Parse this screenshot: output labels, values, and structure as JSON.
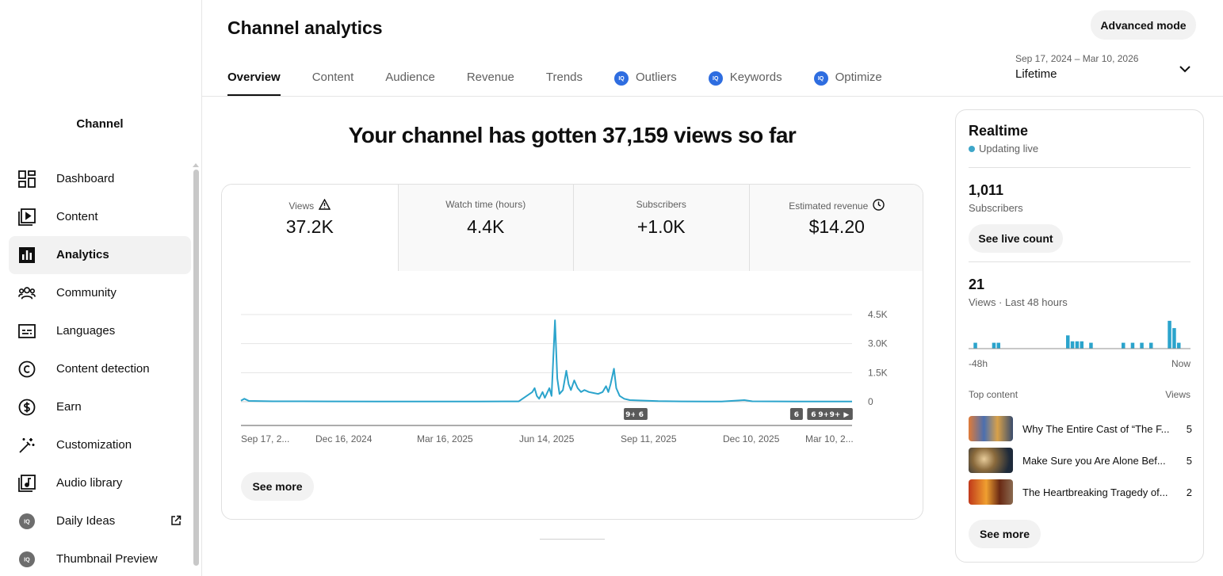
{
  "sidebar": {
    "channel_label": "Channel",
    "items": [
      {
        "label": "Dashboard",
        "icon": "dashboard-icon"
      },
      {
        "label": "Content",
        "icon": "content-icon"
      },
      {
        "label": "Analytics",
        "icon": "analytics-icon",
        "active": true
      },
      {
        "label": "Community",
        "icon": "community-icon"
      },
      {
        "label": "Languages",
        "icon": "subtitles-icon"
      },
      {
        "label": "Content detection",
        "icon": "copyright-icon"
      },
      {
        "label": "Earn",
        "icon": "dollar-icon"
      },
      {
        "label": "Customization",
        "icon": "magic-wand-icon"
      },
      {
        "label": "Audio library",
        "icon": "audio-library-icon"
      },
      {
        "label": "Daily Ideas",
        "icon": "iq-badge-icon"
      },
      {
        "label": "Thumbnail Preview",
        "icon": "iq-badge-icon"
      }
    ]
  },
  "header": {
    "title": "Channel analytics",
    "advanced_mode": "Advanced mode",
    "tabs": [
      "Overview",
      "Content",
      "Audience",
      "Revenue",
      "Trends",
      "Outliers",
      "Keywords",
      "Optimize"
    ],
    "iq_badge": "IQ",
    "date_range": "Sep 17, 2024 – Mar 10, 2026",
    "date_preset": "Lifetime"
  },
  "main": {
    "headline": "Your channel has gotten 37,159 views so far",
    "metrics": [
      {
        "label": "Views",
        "value": "37.2K"
      },
      {
        "label": "Watch time (hours)",
        "value": "4.4K"
      },
      {
        "label": "Subscribers",
        "value": "+1.0K"
      },
      {
        "label": "Estimated revenue",
        "value": "$14.20"
      }
    ],
    "see_more": "See more"
  },
  "chart_data": {
    "type": "line",
    "series_color": "#2ba4cc",
    "y_ticks": [
      "4.5K",
      "3.0K",
      "1.5K",
      "0"
    ],
    "ylim": [
      0,
      4500
    ],
    "x_ticks": [
      "Sep 17, 2...",
      "Dec 16, 2024",
      "Mar 16, 2025",
      "Jun 14, 2025",
      "Sep 11, 2025",
      "Dec 10, 2025",
      "Mar 10, 2..."
    ],
    "x_range": [
      "Sep 17, 2024",
      "Mar 10, 2026"
    ],
    "grid": true,
    "markers": [
      {
        "label": "9+",
        "date": "Aug 27, 2025"
      },
      {
        "label": "6",
        "date": "Sep 5, 2025"
      },
      {
        "label": "6",
        "date": "Jan 20, 2026"
      },
      {
        "label": "6",
        "date": "Feb 4, 2026"
      },
      {
        "label": "9+",
        "date": "Feb 13, 2026"
      },
      {
        "label": "9+",
        "date": "Feb 23, 2026"
      },
      {
        "label": "▶",
        "date": "Mar 5, 2026"
      }
    ],
    "points": [
      [
        "2024-09-17",
        50
      ],
      [
        "2024-09-20",
        150
      ],
      [
        "2024-09-24",
        40
      ],
      [
        "2024-10-15",
        20
      ],
      [
        "2024-12-01",
        15
      ],
      [
        "2025-01-15",
        10
      ],
      [
        "2025-03-01",
        10
      ],
      [
        "2025-04-15",
        10
      ],
      [
        "2025-05-20",
        15
      ],
      [
        "2025-06-01",
        500
      ],
      [
        "2025-06-03",
        700
      ],
      [
        "2025-06-05",
        300
      ],
      [
        "2025-06-07",
        150
      ],
      [
        "2025-06-10",
        500
      ],
      [
        "2025-06-12",
        200
      ],
      [
        "2025-06-16",
        700
      ],
      [
        "2025-06-18",
        300
      ],
      [
        "2025-06-21",
        4200
      ],
      [
        "2025-06-23",
        1200
      ],
      [
        "2025-06-25",
        400
      ],
      [
        "2025-06-28",
        600
      ],
      [
        "2025-07-01",
        1600
      ],
      [
        "2025-07-03",
        900
      ],
      [
        "2025-07-05",
        600
      ],
      [
        "2025-07-08",
        1100
      ],
      [
        "2025-07-11",
        700
      ],
      [
        "2025-07-14",
        500
      ],
      [
        "2025-07-17",
        600
      ],
      [
        "2025-07-21",
        500
      ],
      [
        "2025-07-25",
        450
      ],
      [
        "2025-07-29",
        400
      ],
      [
        "2025-08-02",
        500
      ],
      [
        "2025-08-05",
        800
      ],
      [
        "2025-08-07",
        500
      ],
      [
        "2025-08-09",
        900
      ],
      [
        "2025-08-12",
        1700
      ],
      [
        "2025-08-14",
        700
      ],
      [
        "2025-08-17",
        300
      ],
      [
        "2025-08-21",
        150
      ],
      [
        "2025-08-26",
        80
      ],
      [
        "2025-09-05",
        60
      ],
      [
        "2025-09-20",
        30
      ],
      [
        "2025-10-10",
        15
      ],
      [
        "2025-11-15",
        10
      ],
      [
        "2025-12-05",
        80
      ],
      [
        "2025-12-12",
        20
      ],
      [
        "2026-01-20",
        10
      ],
      [
        "2026-03-10",
        10
      ]
    ]
  },
  "realtime": {
    "title": "Realtime",
    "status": "Updating live",
    "subscribers": "1,011",
    "subscribers_label": "Subscribers",
    "live_count_btn": "See live count",
    "views": "21",
    "views_label": "Views · Last 48 hours",
    "bars": [
      0,
      0,
      0,
      0,
      0,
      0,
      0,
      0,
      0,
      0,
      0,
      0,
      0,
      0,
      0,
      0,
      0,
      0,
      0,
      1,
      0,
      0,
      0,
      0,
      0,
      0,
      0,
      0,
      0,
      0,
      0,
      0,
      0,
      0,
      0,
      0,
      0,
      0,
      0,
      0,
      0,
      0,
      0,
      0,
      0,
      0,
      0,
      0
    ],
    "axis_left": "-48h",
    "axis_right": "Now",
    "top_content_label": "Top content",
    "top_content_views": "Views",
    "top_content": [
      {
        "title": "Why The Entire Cast of “The F...",
        "views": "5"
      },
      {
        "title": "Make Sure you Are Alone Bef...",
        "views": "5"
      },
      {
        "title": "The Heartbreaking Tragedy of...",
        "views": "2"
      }
    ],
    "see_more": "See more"
  }
}
